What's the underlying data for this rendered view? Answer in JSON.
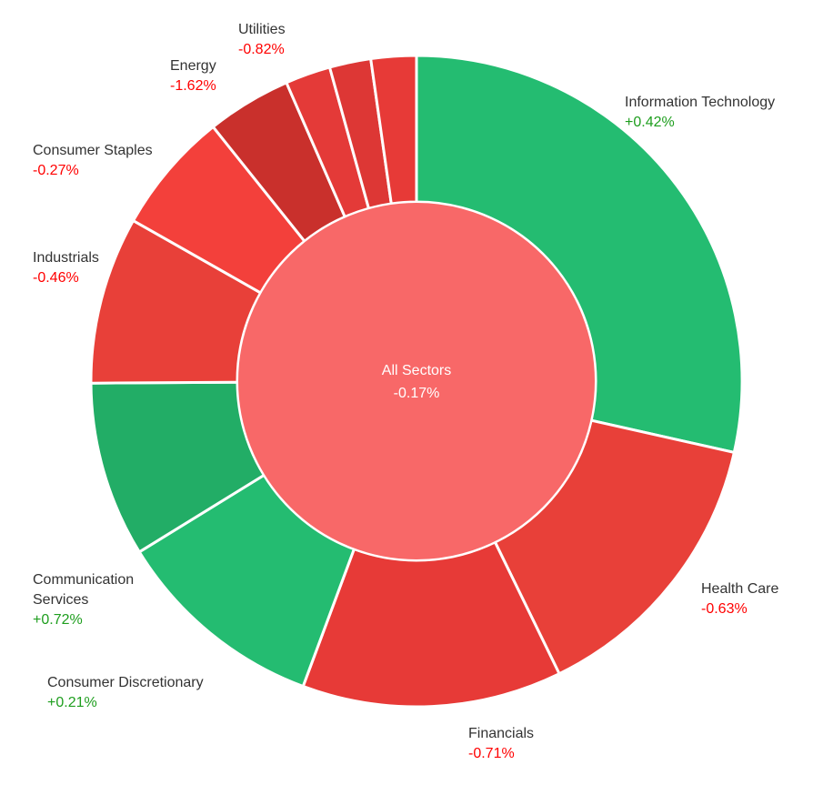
{
  "chart_data": {
    "type": "sunburst",
    "title": "",
    "center": {
      "label": "All Sectors",
      "change": "-0.17%",
      "color": "#f86868"
    },
    "colors": {
      "positive_text": "#1e9e1e",
      "negative_text": "#ff0000"
    },
    "sectors": [
      {
        "name": "Information Technology",
        "weight": 29.2,
        "change": "+0.42%",
        "color": "#24bc71"
      },
      {
        "name": "Health Care",
        "weight": 14.6,
        "change": "-0.63%",
        "color": "#e84039"
      },
      {
        "name": "Financials",
        "weight": 13.2,
        "change": "-0.71%",
        "color": "#e73a37"
      },
      {
        "name": "Consumer Discretionary",
        "weight": 10.8,
        "change": "+0.21%",
        "color": "#24bc71"
      },
      {
        "name": "Communication Services",
        "weight": 8.9,
        "change": "+0.72%",
        "color": "#22ad66"
      },
      {
        "name": "Industrials",
        "weight": 8.5,
        "change": "-0.46%",
        "color": "#e84039"
      },
      {
        "name": "Consumer Staples",
        "weight": 6.2,
        "change": "-0.27%",
        "color": "#f3403b"
      },
      {
        "name": "Energy",
        "weight": 4.3,
        "change": "-1.62%",
        "color": "#c9302c"
      },
      {
        "name": "",
        "weight": 2.3,
        "change": "",
        "color": "#e43a38"
      },
      {
        "name": "",
        "weight": 2.1,
        "change": "",
        "color": "#dd3735"
      },
      {
        "name": "Utilities",
        "weight": 2.3,
        "change": "-0.82%",
        "color": "#e73a37"
      }
    ]
  }
}
